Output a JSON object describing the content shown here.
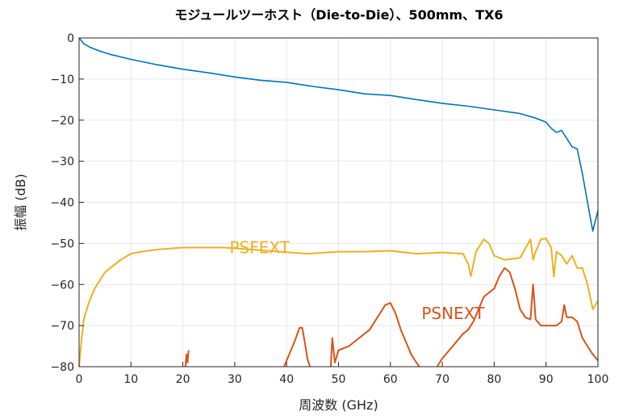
{
  "chart_data": {
    "type": "line",
    "title": "モジュールツーホスト（Die-to-Die）、500mm、TX6",
    "xlabel": "周波数 (GHz)",
    "ylabel": "振幅 (dB)",
    "xlim": [
      0,
      100
    ],
    "ylim": [
      -80,
      0
    ],
    "x_ticks": [
      0,
      10,
      20,
      30,
      40,
      50,
      60,
      70,
      80,
      90,
      100
    ],
    "y_ticks": [
      0,
      -10,
      -20,
      -30,
      -40,
      -50,
      -60,
      -70,
      -80
    ],
    "grid": true,
    "colors": {
      "insertion_loss": "#0072bd",
      "psfext": "#edb120",
      "psnext": "#d95319"
    },
    "series": [
      {
        "key": "insertion_loss",
        "x": [
          0,
          1,
          2,
          4,
          6,
          10,
          15,
          20,
          25,
          30,
          35,
          40,
          45,
          50,
          55,
          60,
          65,
          70,
          75,
          80,
          85,
          88,
          90,
          91,
          92,
          93,
          94,
          95,
          96,
          97,
          98,
          99,
          100
        ],
        "y": [
          0,
          -1.5,
          -2.2,
          -3.2,
          -4.0,
          -5.2,
          -6.5,
          -7.6,
          -8.5,
          -9.5,
          -10.3,
          -10.8,
          -11.8,
          -12.6,
          -13.6,
          -14.0,
          -15.0,
          -15.9,
          -16.6,
          -17.5,
          -18.4,
          -19.5,
          -20.5,
          -22.0,
          -23.0,
          -22.5,
          -24.5,
          -26.5,
          -27.0,
          -33.0,
          -40.0,
          -47.0,
          -42.0
        ]
      },
      {
        "key": "psfext",
        "annotation": "PSFEXT",
        "x": [
          0,
          0.5,
          1,
          2,
          3,
          4,
          5,
          6,
          7,
          8,
          10,
          12,
          15,
          20,
          25,
          28,
          44,
          50,
          55,
          60,
          65,
          70,
          74,
          75,
          75.5,
          76.5,
          78,
          79,
          80,
          82,
          85,
          87,
          87.5,
          88,
          89,
          90,
          91,
          91.5,
          92,
          93,
          94,
          95,
          96,
          97,
          98,
          99,
          100
        ],
        "y": [
          -80,
          -73,
          -68,
          -64,
          -61,
          -59,
          -57,
          -56,
          -55,
          -54,
          -52.5,
          -52,
          -51.5,
          -51,
          -51,
          -51,
          -52.5,
          -52,
          -52,
          -51.8,
          -52.5,
          -52.2,
          -52.5,
          -55,
          -58,
          -52,
          -49,
          -50,
          -53,
          -54,
          -53.5,
          -49,
          -54,
          -52,
          -49,
          -48.8,
          -51,
          -58,
          -52,
          -53,
          -55,
          -53,
          -56,
          -56,
          -60,
          -66,
          -64
        ]
      },
      {
        "key": "psnext",
        "annotation": "PSNEXT",
        "segments": [
          {
            "x": [
              20.5,
              20.7,
              20.9,
              21.1
            ],
            "y": [
              -80,
              -77,
              -79,
              -76
            ]
          },
          {
            "x": [
              39.5,
              40.5,
              41.5,
              42.5,
              43,
              43.5,
              44,
              44.5
            ],
            "y": [
              -80,
              -77,
              -74,
              -70.5,
              -70.5,
              -74,
              -78,
              -80
            ]
          },
          {
            "x": [
              48.5,
              48.8,
              49.3,
              50,
              52,
              54,
              56,
              58,
              59,
              60,
              61,
              62,
              63,
              64,
              65,
              65.6
            ],
            "y": [
              -80,
              -73,
              -79,
              -76,
              -75,
              -73,
              -71,
              -67,
              -65,
              -64.5,
              -67,
              -71,
              -74,
              -77,
              -79,
              -80
            ]
          },
          {
            "x": [
              69,
              70,
              72,
              74,
              75,
              76,
              77,
              78,
              80,
              81,
              82,
              83,
              84,
              85,
              86,
              87,
              87.5,
              88,
              89,
              90,
              92,
              93,
              93.5,
              94,
              95,
              96,
              97,
              98,
              99,
              100
            ],
            "y": [
              -80,
              -78,
              -75,
              -72,
              -71,
              -69,
              -66,
              -63,
              -61,
              -58,
              -56,
              -57,
              -61,
              -66,
              -68,
              -68.5,
              -60,
              -68.5,
              -70,
              -70,
              -70,
              -69,
              -65,
              -68,
              -68,
              -69,
              -73,
              -75,
              -77,
              -78.5
            ]
          }
        ]
      }
    ]
  }
}
